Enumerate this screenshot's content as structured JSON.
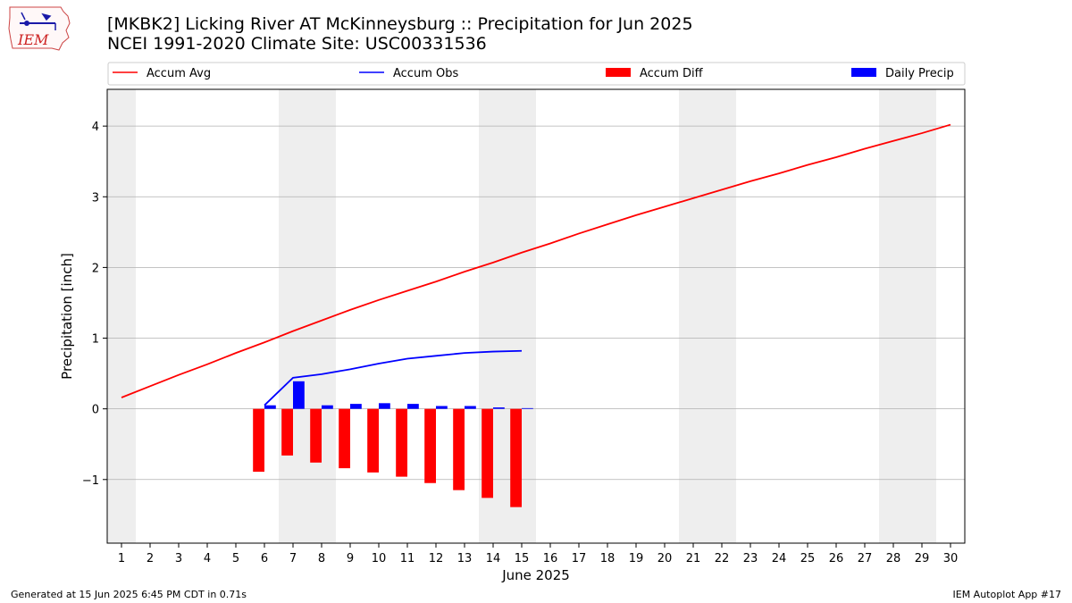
{
  "header": {
    "title": "[MKBK2] Licking River  AT McKinneysburg :: Precipitation for Jun 2025",
    "subtitle": "NCEI 1991-2020 Climate Site: USC00331536"
  },
  "logo": {
    "text": "IEM"
  },
  "footer": {
    "generated": "Generated at 15 Jun 2025 6:45 PM CDT in 0.71s",
    "app": "IEM Autoplot App #17"
  },
  "colors": {
    "avg": "#ff0000",
    "obs": "#0000ff",
    "diff": "#ff0000",
    "daily": "#0000ff",
    "weekend": "#eeeeee",
    "grid": "#b0b0b0"
  },
  "chart_data": {
    "type": "line",
    "xlabel": "June 2025",
    "ylabel": "Precipitation [inch]",
    "xlim": [
      0.5,
      30.5
    ],
    "ylim": [
      -1.9,
      4.52
    ],
    "grid": true,
    "yticks": [
      -1,
      0,
      1,
      2,
      3,
      4
    ],
    "yticklabels": [
      "−1",
      "0",
      "1",
      "2",
      "3",
      "4"
    ],
    "days": [
      1,
      2,
      3,
      4,
      5,
      6,
      7,
      8,
      9,
      10,
      11,
      12,
      13,
      14,
      15,
      16,
      17,
      18,
      19,
      20,
      21,
      22,
      23,
      24,
      25,
      26,
      27,
      28,
      29,
      30
    ],
    "weekend_days": [
      1,
      7,
      8,
      14,
      15,
      21,
      22,
      28,
      29
    ],
    "legend": {
      "placement": "top",
      "entries": [
        "Accum Avg",
        "Accum Obs",
        "Accum Diff",
        "Daily Precip"
      ]
    },
    "series": [
      {
        "name": "Accum Avg",
        "kind": "line",
        "x": [
          1,
          2,
          3,
          4,
          5,
          6,
          7,
          8,
          9,
          10,
          11,
          12,
          13,
          14,
          15,
          16,
          17,
          18,
          19,
          20,
          21,
          22,
          23,
          24,
          25,
          26,
          27,
          28,
          29,
          30
        ],
        "values": [
          0.16,
          0.32,
          0.48,
          0.63,
          0.79,
          0.94,
          1.1,
          1.25,
          1.4,
          1.54,
          1.67,
          1.8,
          1.94,
          2.07,
          2.21,
          2.34,
          2.48,
          2.61,
          2.74,
          2.86,
          2.98,
          3.1,
          3.22,
          3.33,
          3.45,
          3.56,
          3.68,
          3.79,
          3.9,
          4.02
        ]
      },
      {
        "name": "Accum Obs",
        "kind": "line",
        "x": [
          6,
          7,
          8,
          9,
          10,
          11,
          12,
          13,
          14,
          15
        ],
        "values": [
          0.05,
          0.44,
          0.49,
          0.56,
          0.64,
          0.71,
          0.75,
          0.79,
          0.81,
          0.82
        ]
      },
      {
        "name": "Accum Diff",
        "kind": "bar",
        "x": [
          6,
          7,
          8,
          9,
          10,
          11,
          12,
          13,
          14,
          15
        ],
        "values": [
          -0.89,
          -0.66,
          -0.76,
          -0.84,
          -0.9,
          -0.96,
          -1.05,
          -1.15,
          -1.26,
          -1.39
        ]
      },
      {
        "name": "Daily Precip",
        "kind": "bar",
        "x": [
          6,
          7,
          8,
          9,
          10,
          11,
          12,
          13,
          14,
          15
        ],
        "values": [
          0.05,
          0.39,
          0.05,
          0.07,
          0.08,
          0.07,
          0.04,
          0.04,
          0.02,
          0.01
        ]
      }
    ]
  }
}
